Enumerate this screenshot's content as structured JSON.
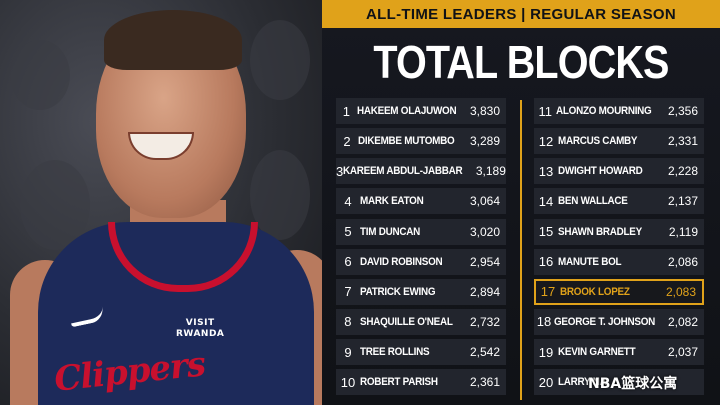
{
  "header": {
    "subtitle": "ALL-TIME LEADERS | REGULAR SEASON",
    "title": "TOTAL BLOCKS"
  },
  "colors": {
    "accent": "#e0a21a",
    "row_bg": "#22252d",
    "jersey_navy": "#1d2a5a",
    "jersey_red": "#c8102e"
  },
  "jersey": {
    "team": "Clippers",
    "sponsor_line1": "VISIT",
    "sponsor_line2": "RWANDA",
    "swoosh_icon": "swoosh-icon"
  },
  "leaders_left": [
    {
      "rank": "1",
      "name": "HAKEEM OLAJUWON",
      "value": "3,830"
    },
    {
      "rank": "2",
      "name": "DIKEMBE MUTOMBO",
      "value": "3,289"
    },
    {
      "rank": "3",
      "name": "KAREEM ABDUL-JABBAR",
      "value": "3,189"
    },
    {
      "rank": "4",
      "name": "MARK EATON",
      "value": "3,064"
    },
    {
      "rank": "5",
      "name": "TIM DUNCAN",
      "value": "3,020"
    },
    {
      "rank": "6",
      "name": "DAVID ROBINSON",
      "value": "2,954"
    },
    {
      "rank": "7",
      "name": "PATRICK EWING",
      "value": "2,894"
    },
    {
      "rank": "8",
      "name": "SHAQUILLE O'NEAL",
      "value": "2,732"
    },
    {
      "rank": "9",
      "name": "TREE ROLLINS",
      "value": "2,542"
    },
    {
      "rank": "10",
      "name": "ROBERT PARISH",
      "value": "2,361"
    }
  ],
  "leaders_right": [
    {
      "rank": "11",
      "name": "ALONZO MOURNING",
      "value": "2,356"
    },
    {
      "rank": "12",
      "name": "MARCUS CAMBY",
      "value": "2,331"
    },
    {
      "rank": "13",
      "name": "DWIGHT HOWARD",
      "value": "2,228"
    },
    {
      "rank": "14",
      "name": "BEN WALLACE",
      "value": "2,137"
    },
    {
      "rank": "15",
      "name": "SHAWN BRADLEY",
      "value": "2,119"
    },
    {
      "rank": "16",
      "name": "MANUTE BOL",
      "value": "2,086"
    },
    {
      "rank": "17",
      "name": "BROOK LOPEZ",
      "value": "2,083",
      "highlight": true
    },
    {
      "rank": "18",
      "name": "GEORGE T. JOHNSON",
      "value": "2,082"
    },
    {
      "rank": "19",
      "name": "KEVIN GARNETT",
      "value": "2,037"
    },
    {
      "rank": "20",
      "name": "LARRY NA",
      "value": ""
    }
  ],
  "watermark": "NBA篮球公寓"
}
